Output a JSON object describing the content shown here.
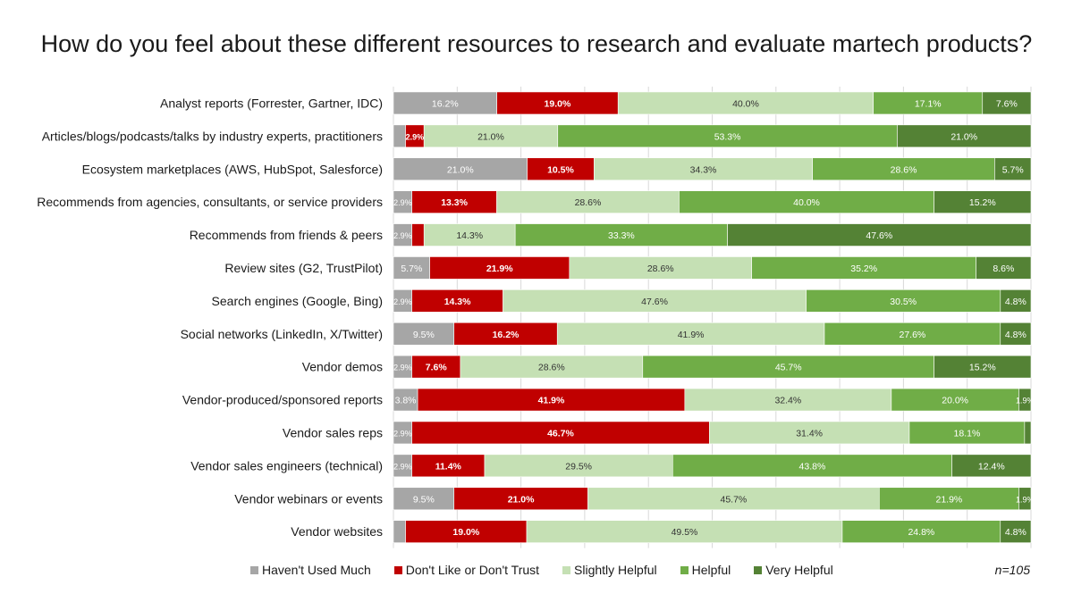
{
  "chart_data": {
    "type": "bar",
    "orientation": "horizontal",
    "stacked": true,
    "title": "How do you feel about these different resources to research and evaluate martech products?",
    "categories": [
      "Analyst reports (Forrester, Gartner, IDC)",
      "Articles/blogs/podcasts/talks by industry experts, practitioners",
      "Ecosystem marketplaces (AWS, HubSpot, Salesforce)",
      "Recommends from agencies, consultants, or service providers",
      "Recommends from friends & peers",
      "Review sites (G2, TrustPilot)",
      "Search engines (Google, Bing)",
      "Social networks (LinkedIn, X/Twitter)",
      "Vendor demos",
      "Vendor-produced/sponsored reports",
      "Vendor sales reps",
      "Vendor sales engineers (technical)",
      "Vendor webinars or events",
      "Vendor websites"
    ],
    "series": [
      {
        "name": "Haven't Used Much",
        "color": "#a6a6a6",
        "values": [
          16.2,
          1.9,
          21.0,
          2.9,
          2.9,
          5.7,
          2.9,
          9.5,
          2.9,
          3.8,
          2.9,
          2.9,
          9.5,
          1.9
        ],
        "labels": [
          "16.2%",
          "",
          "21.0%",
          "2.9%",
          "2.9%",
          "5.7%",
          "2.9%",
          "9.5%",
          "2.9%",
          "3.8%",
          "2.9%",
          "2.9%",
          "9.5%",
          ""
        ]
      },
      {
        "name": "Don't Like or Don't Trust",
        "color": "#c00000",
        "values": [
          19.0,
          2.9,
          10.5,
          13.3,
          1.9,
          21.9,
          14.3,
          16.2,
          7.6,
          41.9,
          46.7,
          11.4,
          21.0,
          19.0
        ],
        "labels": [
          "19.0%",
          "2.9%",
          "10.5%",
          "13.3%",
          "",
          "21.9%",
          "14.3%",
          "16.2%",
          "7.6%",
          "41.9%",
          "46.7%",
          "11.4%",
          "21.0%",
          "19.0%"
        ]
      },
      {
        "name": "Slightly Helpful",
        "color": "#c5e0b4",
        "values": [
          40.0,
          21.0,
          34.3,
          28.6,
          14.3,
          28.6,
          47.6,
          41.9,
          28.6,
          32.4,
          31.4,
          29.5,
          45.7,
          49.5
        ],
        "labels": [
          "40.0%",
          "21.0%",
          "34.3%",
          "28.6%",
          "14.3%",
          "28.6%",
          "47.6%",
          "41.9%",
          "28.6%",
          "32.4%",
          "31.4%",
          "29.5%",
          "45.7%",
          "49.5%"
        ]
      },
      {
        "name": "Helpful",
        "color": "#70ad47",
        "values": [
          17.1,
          53.3,
          28.6,
          40.0,
          33.3,
          35.2,
          30.5,
          27.6,
          45.7,
          20.0,
          18.1,
          43.8,
          21.9,
          24.8
        ],
        "labels": [
          "17.1%",
          "53.3%",
          "28.6%",
          "40.0%",
          "33.3%",
          "35.2%",
          "30.5%",
          "27.6%",
          "45.7%",
          "20.0%",
          "18.1%",
          "43.8%",
          "21.9%",
          "24.8%"
        ]
      },
      {
        "name": "Very Helpful",
        "color": "#548235",
        "values": [
          7.6,
          21.0,
          5.7,
          15.2,
          47.6,
          8.6,
          4.8,
          4.8,
          15.2,
          1.9,
          1.0,
          12.4,
          1.9,
          4.8
        ],
        "labels": [
          "7.6%",
          "21.0%",
          "5.7%",
          "15.2%",
          "47.6%",
          "8.6%",
          "4.8%",
          "4.8%",
          "15.2%",
          "1.9%",
          "",
          "12.4%",
          "1.9%",
          "4.8%"
        ]
      }
    ],
    "xlim": [
      0,
      100
    ],
    "xlabel": "",
    "ylabel": "",
    "grid": true,
    "legend_position": "bottom",
    "note": "n=105"
  }
}
